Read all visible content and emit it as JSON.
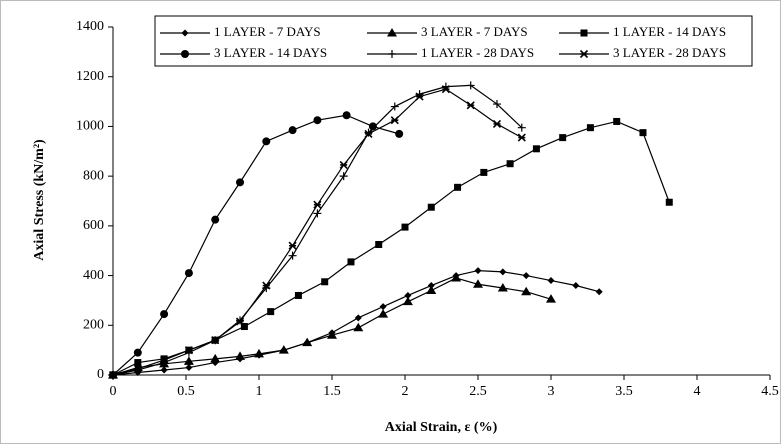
{
  "chart_data": {
    "type": "line",
    "x_label": "Axial Strain, ε (%)",
    "y_label": "Axial Stress (kN/m²)",
    "xlim": [
      0,
      4.5
    ],
    "xticks": [
      0,
      0.5,
      1,
      1.5,
      2,
      2.5,
      3,
      3.5,
      4,
      4.5
    ],
    "ylim": [
      0,
      1400
    ],
    "yticks": [
      0,
      200,
      400,
      600,
      800,
      1000,
      1200,
      1400
    ],
    "grid": false,
    "legend": "top",
    "series": [
      {
        "name": "1 LAYER - 7 DAYS",
        "color": "#000000",
        "marker": "diamond",
        "x": [
          0,
          0.17,
          0.35,
          0.52,
          0.7,
          0.87,
          1.0,
          1.17,
          1.33,
          1.5,
          1.68,
          1.85,
          2.02,
          2.18,
          2.35,
          2.5,
          2.67,
          2.83,
          3.0,
          3.17,
          3.33
        ],
        "values": [
          0,
          10,
          20,
          30,
          50,
          65,
          80,
          100,
          130,
          170,
          230,
          275,
          320,
          360,
          400,
          420,
          415,
          400,
          380,
          360,
          335
        ]
      },
      {
        "name": "3 LAYER - 7 DAYS",
        "color": "#000000",
        "marker": "triangle",
        "x": [
          0,
          0.17,
          0.35,
          0.52,
          0.7,
          0.87,
          1.0,
          1.17,
          1.33,
          1.5,
          1.68,
          1.85,
          2.02,
          2.18,
          2.35,
          2.5,
          2.67,
          2.83,
          3.0
        ],
        "values": [
          0,
          30,
          45,
          55,
          65,
          75,
          85,
          100,
          130,
          160,
          190,
          245,
          295,
          340,
          390,
          365,
          350,
          335,
          305
        ]
      },
      {
        "name": "1 LAYER - 14 DAYS",
        "color": "#000000",
        "marker": "square",
        "x": [
          0,
          0.17,
          0.35,
          0.52,
          0.7,
          0.9,
          1.08,
          1.27,
          1.45,
          1.63,
          1.82,
          2.0,
          2.18,
          2.36,
          2.54,
          2.72,
          2.9,
          3.08,
          3.27,
          3.45,
          3.63,
          3.81
        ],
        "values": [
          0,
          50,
          65,
          100,
          140,
          195,
          255,
          320,
          375,
          455,
          525,
          595,
          675,
          755,
          815,
          850,
          910,
          955,
          995,
          1020,
          975,
          695
        ]
      },
      {
        "name": "3 LAYER - 14 DAYS",
        "color": "#000000",
        "marker": "circle",
        "x": [
          0,
          0.17,
          0.35,
          0.52,
          0.7,
          0.87,
          1.05,
          1.23,
          1.4,
          1.6,
          1.78,
          1.96
        ],
        "values": [
          0,
          90,
          245,
          410,
          625,
          775,
          940,
          985,
          1025,
          1045,
          1000,
          970
        ]
      },
      {
        "name": "1 LAYER - 28 DAYS",
        "color": "#000000",
        "marker": "plus",
        "x": [
          0,
          0.17,
          0.35,
          0.52,
          0.7,
          0.87,
          1.05,
          1.23,
          1.4,
          1.58,
          1.75,
          1.93,
          2.1,
          2.28,
          2.45,
          2.63,
          2.8
        ],
        "values": [
          0,
          20,
          50,
          90,
          140,
          220,
          350,
          480,
          650,
          800,
          975,
          1080,
          1130,
          1160,
          1165,
          1090,
          995
        ]
      },
      {
        "name": "3 LAYER - 28 DAYS",
        "color": "#000000",
        "marker": "star",
        "x": [
          0,
          0.17,
          0.35,
          0.52,
          0.7,
          0.87,
          1.05,
          1.23,
          1.4,
          1.58,
          1.75,
          1.93,
          2.1,
          2.28,
          2.45,
          2.63,
          2.8
        ],
        "values": [
          0,
          25,
          60,
          100,
          140,
          215,
          360,
          520,
          685,
          845,
          970,
          1025,
          1120,
          1150,
          1085,
          1010,
          955
        ]
      }
    ]
  }
}
